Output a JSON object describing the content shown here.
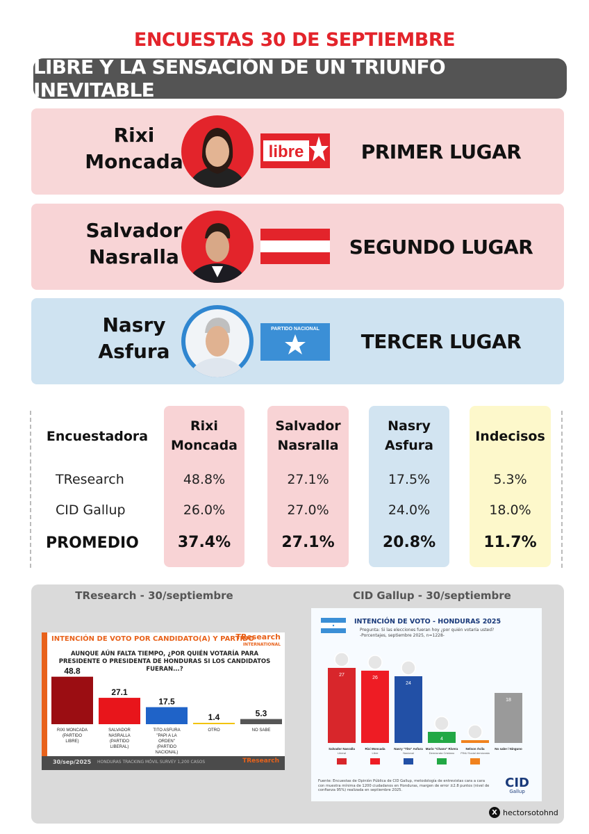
{
  "header": {
    "title": "ENCUESTAS 30 DE SEPTIEMBRE",
    "subtitle": "LIBRE Y LA SENSACIÓN DE UN TRIUNFO INEVITABLE"
  },
  "candidates": [
    {
      "name_line1": "Rixi",
      "name_line2": "Moncada",
      "party_logo_text": "libre",
      "place": "PRIMER LUGAR",
      "color": "#e3242b"
    },
    {
      "name_line1": "Salvador",
      "name_line2": "Nasralla",
      "place": "SEGUNDO LUGAR",
      "color": "#e3242b"
    },
    {
      "name_line1": "Nasry",
      "name_line2": "Asfura",
      "party_logo_text": "PARTIDO NACIONAL",
      "place": "TERCER LUGAR",
      "color": "#3b8fd6"
    }
  ],
  "table": {
    "label_header": "Encuestadora",
    "columns": [
      {
        "line1": "Rixi",
        "line2": "Moncada"
      },
      {
        "line1": "Salvador",
        "line2": "Nasralla"
      },
      {
        "line1": "Nasry",
        "line2": "Asfura"
      },
      {
        "line1": "Indecisos",
        "line2": ""
      }
    ],
    "rows": [
      {
        "label": "TResearch",
        "values": [
          "48.8%",
          "27.1%",
          "17.5%",
          "5.3%"
        ]
      },
      {
        "label": "CID Gallup",
        "values": [
          "26.0%",
          "27.0%",
          "24.0%",
          "18.0%"
        ]
      },
      {
        "label": "PROMEDIO",
        "values": [
          "37.4%",
          "27.1%",
          "20.8%",
          "11.7%"
        ]
      }
    ]
  },
  "bottom": {
    "left_title": "TResearch - 30/septiembre",
    "right_title": "CID Gallup - 30/septiembre"
  },
  "tresearch": {
    "header_title": "INTENCIÓN DE VOTO POR CANDIDATO(A) Y PARTIDO",
    "brand": "TResearch",
    "brand_sub": "INTERNATIONAL",
    "question": "AUNQUE AÚN FALTA TIEMPO, ¿POR QUIÉN VOTARÍA PARA PRESIDENTE O PRESIDENTA DE HONDURAS SI LOS CANDIDATOS FUERAN...?",
    "footer_date": "30/sep/2025",
    "footer_mid": "HONDURAS    TRACKING MÓVIL SURVEY    1,200 CASOS",
    "footer_brand": "TResearch"
  },
  "cid": {
    "title": "INTENCIÓN DE VOTO - HONDURAS 2025",
    "sub1": "Pregunta: Si las elecciones fueran hoy ¿por quién votaría usted?",
    "sub2": "-Porcentajes, septiembre 2025, n=1228-",
    "footnote": "Fuente: Encuestas de Opinión Pública de CID Gallup, metodología de entrevistas cara a cara con muestra mínima de 1200 ciudadanos en Honduras, margen de error ±2.8 puntos (nivel de confianza 95%) realizada en septiembre 2025.",
    "logo": "CID",
    "logo_sub": "Gallup"
  },
  "chart_data": [
    {
      "type": "bar",
      "title": "INTENCIÓN DE VOTO POR CANDIDATO(A) Y PARTIDO",
      "categories": [
        "RIXI MONCADA (PARTIDO LIBRE)",
        "SALVADOR NASRALLA (PARTIDO LIBERAL)",
        "TITO ASFURA \"PAPI A LA ORDEN\" (PARTIDO NACIONAL)",
        "OTRO",
        "NO SABE"
      ],
      "values": [
        48.8,
        27.1,
        17.5,
        1.4,
        5.3
      ],
      "value_labels": [
        "48.8",
        "27.1",
        "17.5",
        "1.4",
        "5.3"
      ],
      "colors": [
        "#9b0d12",
        "#e8151b",
        "#1f63c8",
        "#f2c300",
        "#555555"
      ],
      "ylim": [
        0,
        60
      ]
    },
    {
      "type": "bar",
      "title": "INTENCIÓN DE VOTO - HONDURAS 2025",
      "categories": [
        "Salvador Nasralla",
        "Rixi Moncada",
        "Nasry \"Tito\" Asfura",
        "Mario \"Chano\" Rivera",
        "Nelson Ávila",
        "No sabe / Ninguno"
      ],
      "subcategories": [
        "Liberal",
        "Libre",
        "Nacional",
        "Demócrata Cristiano",
        "PINU Social demócrata",
        ""
      ],
      "values": [
        27,
        26,
        24,
        4,
        1,
        18
      ],
      "value_labels": [
        "27",
        "26",
        "24",
        "4",
        "1",
        "18"
      ],
      "colors": [
        "#d8262b",
        "#ee1c24",
        "#2250a6",
        "#22a845",
        "#f0821e",
        "#9a9a9a"
      ],
      "ylim": [
        0,
        30
      ]
    }
  ],
  "social": {
    "handle": "hectorsotohnd",
    "icon": "x-icon"
  }
}
